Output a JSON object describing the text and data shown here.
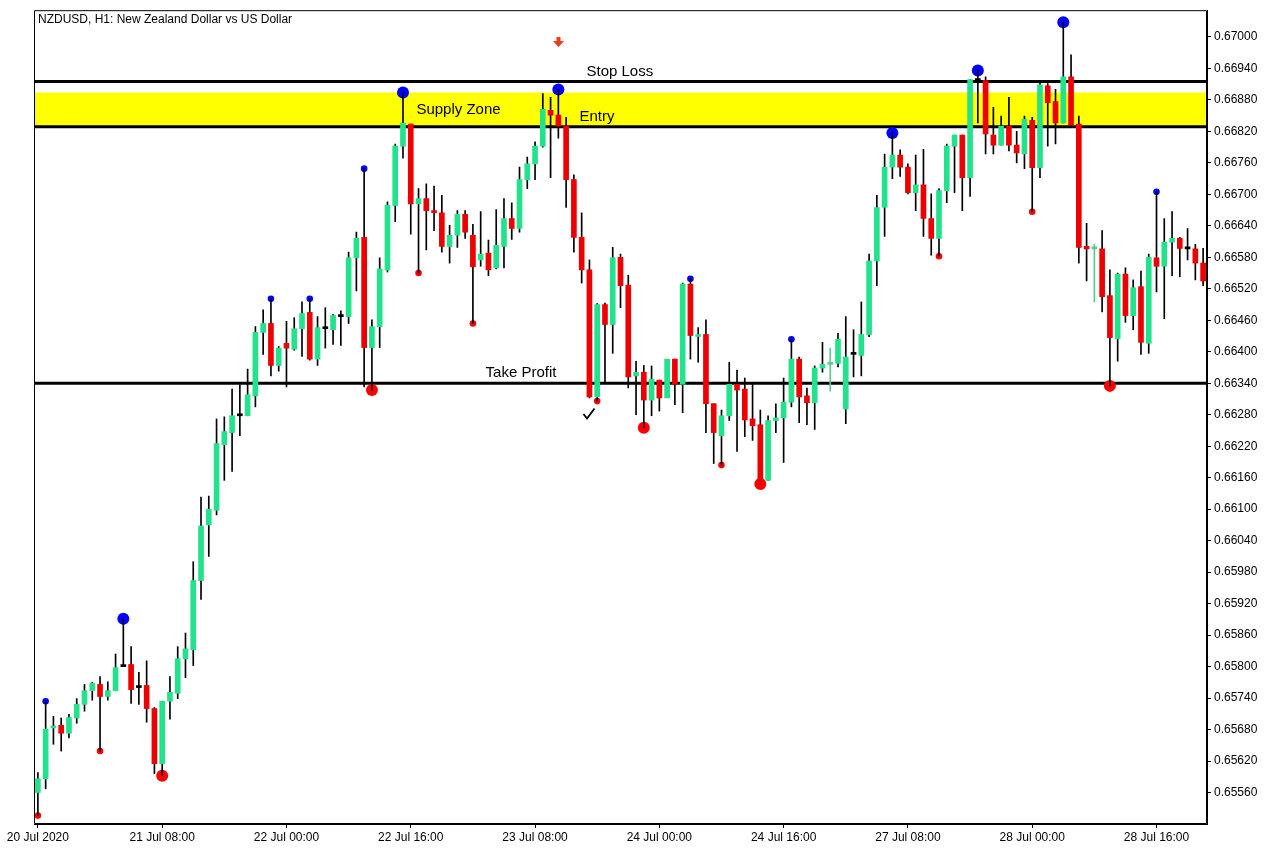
{
  "chart_data": {
    "type": "candlestick",
    "title": "NZDUSD, H1: New Zealand Dollar vs US Dollar",
    "categories": [
      "20 Jul 2020",
      null,
      null,
      null,
      null,
      null,
      null,
      null,
      null,
      null,
      null,
      null,
      null,
      null,
      null,
      null,
      "21 Jul 08:00",
      null,
      null,
      null,
      null,
      null,
      null,
      null,
      null,
      null,
      null,
      null,
      null,
      null,
      null,
      null,
      "22 Jul 00:00",
      null,
      null,
      null,
      null,
      null,
      null,
      null,
      null,
      null,
      null,
      null,
      null,
      null,
      null,
      null,
      "22 Jul 16:00",
      null,
      null,
      null,
      null,
      null,
      null,
      null,
      null,
      null,
      null,
      null,
      null,
      null,
      null,
      null,
      "23 Jul 08:00",
      null,
      null,
      null,
      null,
      null,
      null,
      null,
      null,
      null,
      null,
      null,
      null,
      null,
      null,
      null,
      "24 Jul 00:00",
      null,
      null,
      null,
      null,
      null,
      null,
      null,
      null,
      null,
      null,
      null,
      null,
      null,
      null,
      null,
      "24 Jul 16:00",
      null,
      null,
      null,
      null,
      null,
      null,
      null,
      null,
      null,
      null,
      null,
      null,
      null,
      null,
      null,
      "27 Jul 08:00",
      null,
      null,
      null,
      null,
      null,
      null,
      null,
      null,
      null,
      null,
      null,
      null,
      null,
      null,
      null,
      "28 Jul 00:00",
      null,
      null,
      null,
      null,
      null,
      null,
      null,
      null,
      null,
      null,
      null,
      null,
      null,
      null,
      null,
      "28 Jul 16:00",
      null,
      null,
      null,
      null,
      null,
      null
    ],
    "ohlc": [
      [
        0.6556,
        0.65598,
        0.65516,
        0.65586
      ],
      [
        0.65586,
        0.65734,
        0.65567,
        0.65681
      ],
      [
        0.65683,
        0.65705,
        0.65652,
        0.65686
      ],
      [
        0.65688,
        0.65702,
        0.65639,
        0.65673
      ],
      [
        0.65673,
        0.65709,
        0.65664,
        0.65703
      ],
      [
        0.65702,
        0.65739,
        0.65692,
        0.65728
      ],
      [
        0.65728,
        0.65766,
        0.65715,
        0.65754
      ],
      [
        0.65754,
        0.6577,
        0.65736,
        0.65768
      ],
      [
        0.65766,
        0.65781,
        0.65639,
        0.65743
      ],
      [
        0.65743,
        0.65771,
        0.65736,
        0.65754
      ],
      [
        0.65754,
        0.65824,
        0.65754,
        0.65798
      ],
      [
        0.658,
        0.65891,
        0.658,
        0.658
      ],
      [
        0.65804,
        0.65838,
        0.6573,
        0.65756
      ],
      [
        0.6576,
        0.65789,
        0.65728,
        0.6576
      ],
      [
        0.65764,
        0.65811,
        0.65694,
        0.6572
      ],
      [
        0.6572,
        0.65722,
        0.65596,
        0.65615
      ],
      [
        0.65615,
        0.65734,
        0.65592,
        0.65734
      ],
      [
        0.65734,
        0.65781,
        0.657,
        0.65751
      ],
      [
        0.65749,
        0.65838,
        0.65739,
        0.65815
      ],
      [
        0.65815,
        0.65864,
        0.65779,
        0.65834
      ],
      [
        0.65832,
        0.66,
        0.65802,
        0.65964
      ],
      [
        0.65964,
        0.66123,
        0.65928,
        0.66068
      ],
      [
        0.6607,
        0.66125,
        0.6601,
        0.661
      ],
      [
        0.66098,
        0.66272,
        0.66089,
        0.66225
      ],
      [
        0.66223,
        0.66276,
        0.66155,
        0.66248
      ],
      [
        0.66246,
        0.66329,
        0.66172,
        0.66278
      ],
      [
        0.66278,
        0.66337,
        0.6624,
        0.66278
      ],
      [
        0.66278,
        0.66367,
        0.66278,
        0.66318
      ],
      [
        0.66316,
        0.66448,
        0.66295,
        0.66437
      ],
      [
        0.66437,
        0.6648,
        0.66395,
        0.66454
      ],
      [
        0.66454,
        0.66501,
        0.66354,
        0.66374
      ],
      [
        0.66374,
        0.6641,
        0.66363,
        0.66407
      ],
      [
        0.66416,
        0.66458,
        0.66333,
        0.66407
      ],
      [
        0.66405,
        0.66465,
        0.66403,
        0.66444
      ],
      [
        0.66444,
        0.66495,
        0.66391,
        0.66473
      ],
      [
        0.66475,
        0.66501,
        0.66384,
        0.66386
      ],
      [
        0.66386,
        0.66467,
        0.66374,
        0.66446
      ],
      [
        0.66444,
        0.66484,
        0.66407,
        0.66444
      ],
      [
        0.66442,
        0.66471,
        0.66414,
        0.66469
      ],
      [
        0.66467,
        0.66478,
        0.66412,
        0.66467
      ],
      [
        0.66467,
        0.6659,
        0.66454,
        0.66579
      ],
      [
        0.66579,
        0.66628,
        0.66516,
        0.66616
      ],
      [
        0.66618,
        0.66749,
        0.66333,
        0.66408
      ],
      [
        0.66408,
        0.66461,
        0.66327,
        0.66448
      ],
      [
        0.66448,
        0.66579,
        0.66408,
        0.66558
      ],
      [
        0.66556,
        0.66686,
        0.66552,
        0.66679
      ],
      [
        0.66679,
        0.66796,
        0.66648,
        0.66792
      ],
      [
        0.66792,
        0.66894,
        0.66769,
        0.66836
      ],
      [
        0.66834,
        0.66834,
        0.66624,
        0.66682
      ],
      [
        0.66682,
        0.66711,
        0.6655,
        0.66692
      ],
      [
        0.66692,
        0.6672,
        0.66594,
        0.66669
      ],
      [
        0.66669,
        0.66716,
        0.66631,
        0.66665
      ],
      [
        0.66665,
        0.66698,
        0.6659,
        0.66601
      ],
      [
        0.66601,
        0.66641,
        0.66569,
        0.66622
      ],
      [
        0.66622,
        0.66669,
        0.66599,
        0.66662
      ],
      [
        0.66662,
        0.66669,
        0.66616,
        0.66628
      ],
      [
        0.66622,
        0.66643,
        0.66454,
        0.66562
      ],
      [
        0.66575,
        0.66667,
        0.66563,
        0.66586
      ],
      [
        0.66588,
        0.66613,
        0.66545,
        0.66556
      ],
      [
        0.6656,
        0.66671,
        0.66558,
        0.66603
      ],
      [
        0.66601,
        0.66692,
        0.6656,
        0.66654
      ],
      [
        0.66654,
        0.66684,
        0.66614,
        0.66635
      ],
      [
        0.66635,
        0.66752,
        0.66628,
        0.66728
      ],
      [
        0.66728,
        0.66771,
        0.66711,
        0.66758
      ],
      [
        0.66758,
        0.668,
        0.66728,
        0.66792
      ],
      [
        0.66792,
        0.66892,
        0.6679,
        0.66862
      ],
      [
        0.6686,
        0.66885,
        0.66732,
        0.66851
      ],
      [
        0.66851,
        0.669,
        0.66807,
        0.6683
      ],
      [
        0.6683,
        0.66847,
        0.66675,
        0.66728
      ],
      [
        0.66728,
        0.66737,
        0.6659,
        0.66618
      ],
      [
        0.66618,
        0.66665,
        0.66531,
        0.66556
      ],
      [
        0.66556,
        0.66575,
        0.66312,
        0.66314
      ],
      [
        0.66314,
        0.66492,
        0.66306,
        0.6649
      ],
      [
        0.6649,
        0.66493,
        0.66342,
        0.66452
      ],
      [
        0.66452,
        0.66599,
        0.66397,
        0.66579
      ],
      [
        0.6658,
        0.66586,
        0.66484,
        0.66526
      ],
      [
        0.66527,
        0.66546,
        0.66331,
        0.66352
      ],
      [
        0.66354,
        0.66382,
        0.6628,
        0.66361
      ],
      [
        0.66361,
        0.66374,
        0.66255,
        0.66308
      ],
      [
        0.66308,
        0.66373,
        0.66278,
        0.66348
      ],
      [
        0.66346,
        0.66346,
        0.66287,
        0.66312
      ],
      [
        0.66312,
        0.66386,
        0.66312,
        0.66386
      ],
      [
        0.66386,
        0.66386,
        0.66299,
        0.66338
      ],
      [
        0.66338,
        0.66531,
        0.66284,
        0.66529
      ],
      [
        0.66529,
        0.66539,
        0.66386,
        0.66431
      ],
      [
        0.66429,
        0.66446,
        0.6638,
        0.66433
      ],
      [
        0.66433,
        0.66461,
        0.66246,
        0.66301
      ],
      [
        0.66301,
        0.66301,
        0.66187,
        0.66246
      ],
      [
        0.6624,
        0.66289,
        0.66184,
        0.66278
      ],
      [
        0.66278,
        0.6638,
        0.66269,
        0.66338
      ],
      [
        0.66338,
        0.66365,
        0.6621,
        0.66327
      ],
      [
        0.66329,
        0.6635,
        0.66238,
        0.6627
      ],
      [
        0.66272,
        0.66338,
        0.66231,
        0.66259
      ],
      [
        0.66261,
        0.66289,
        0.66148,
        0.66149
      ],
      [
        0.66155,
        0.66278,
        0.66155,
        0.66269
      ],
      [
        0.66269,
        0.66301,
        0.66246,
        0.66274
      ],
      [
        0.66274,
        0.6635,
        0.66189,
        0.66304
      ],
      [
        0.66304,
        0.66424,
        0.66295,
        0.66386
      ],
      [
        0.66386,
        0.6639,
        0.66265,
        0.66314
      ],
      [
        0.66316,
        0.66331,
        0.66261,
        0.66303
      ],
      [
        0.66303,
        0.66373,
        0.66252,
        0.66369
      ],
      [
        0.66369,
        0.66418,
        0.66361,
        0.66376
      ],
      [
        0.66376,
        0.66407,
        0.66325,
        0.66376
      ],
      [
        0.66378,
        0.66435,
        0.66371,
        0.66424
      ],
      [
        0.66291,
        0.66467,
        0.66263,
        0.6639
      ],
      [
        0.66395,
        0.66442,
        0.66352,
        0.66395
      ],
      [
        0.66393,
        0.66495,
        0.66354,
        0.66433
      ],
      [
        0.66433,
        0.66586,
        0.66429,
        0.66573
      ],
      [
        0.66573,
        0.66698,
        0.66526,
        0.66675
      ],
      [
        0.66675,
        0.66777,
        0.6662,
        0.66752
      ],
      [
        0.66752,
        0.66817,
        0.6673,
        0.66775
      ],
      [
        0.66775,
        0.66785,
        0.66734,
        0.66752
      ],
      [
        0.66752,
        0.66758,
        0.66701,
        0.66703
      ],
      [
        0.66703,
        0.66775,
        0.66669,
        0.66718
      ],
      [
        0.66718,
        0.66786,
        0.6662,
        0.66654
      ],
      [
        0.66654,
        0.66701,
        0.66584,
        0.66616
      ],
      [
        0.66616,
        0.66711,
        0.66582,
        0.66707
      ],
      [
        0.66707,
        0.66796,
        0.66684,
        0.66792
      ],
      [
        0.66792,
        0.66813,
        0.66703,
        0.66813
      ],
      [
        0.66813,
        0.66813,
        0.66669,
        0.66732
      ],
      [
        0.66732,
        0.66919,
        0.66696,
        0.66919
      ],
      [
        0.66917,
        0.66936,
        0.66836,
        0.66917
      ],
      [
        0.66917,
        0.66924,
        0.66777,
        0.66815
      ],
      [
        0.66813,
        0.66866,
        0.66777,
        0.66794
      ],
      [
        0.66794,
        0.66849,
        0.66794,
        0.6683
      ],
      [
        0.6683,
        0.66885,
        0.66783,
        0.66794
      ],
      [
        0.66794,
        0.6682,
        0.6676,
        0.66779
      ],
      [
        0.66777,
        0.66849,
        0.66749,
        0.66843
      ],
      [
        0.66841,
        0.66847,
        0.66667,
        0.66751
      ],
      [
        0.66751,
        0.66915,
        0.66732,
        0.66909
      ],
      [
        0.66907,
        0.66911,
        0.66792,
        0.66875
      ],
      [
        0.66877,
        0.669,
        0.66796,
        0.66836
      ],
      [
        0.66836,
        0.67028,
        0.66836,
        0.66924
      ],
      [
        0.66924,
        0.66966,
        0.66828,
        0.66832
      ],
      [
        0.66834,
        0.66849,
        0.66569,
        0.66599
      ],
      [
        0.66601,
        0.66645,
        0.66535,
        0.66596
      ],
      [
        0.66596,
        0.66605,
        0.66495,
        0.66596
      ],
      [
        0.66596,
        0.66631,
        0.66476,
        0.66505
      ],
      [
        0.66507,
        0.66556,
        0.66335,
        0.66427
      ],
      [
        0.66425,
        0.6655,
        0.66382,
        0.66548
      ],
      [
        0.66548,
        0.6656,
        0.66456,
        0.66469
      ],
      [
        0.66469,
        0.66537,
        0.66442,
        0.66522
      ],
      [
        0.66524,
        0.66554,
        0.66395,
        0.66418
      ],
      [
        0.66416,
        0.66586,
        0.66397,
        0.6658
      ],
      [
        0.66579,
        0.66705,
        0.66514,
        0.66563
      ],
      [
        0.66563,
        0.66654,
        0.66463,
        0.66609
      ],
      [
        0.66609,
        0.66667,
        0.66545,
        0.66616
      ],
      [
        0.66616,
        0.66618,
        0.66543,
        0.66597
      ],
      [
        0.66596,
        0.66635,
        0.66575,
        0.66596
      ],
      [
        0.66596,
        0.66605,
        0.66537,
        0.66569
      ],
      [
        0.66569,
        0.66597,
        0.66526,
        0.66535
      ]
    ],
    "colors": [
      "#22e28c",
      "#22e28c",
      "#22e28c",
      "#ee0000",
      "#22e28c",
      "#22e28c",
      "#22e28c",
      "#22e28c",
      "#ee0000",
      "#22e28c",
      "#22e28c",
      "#000000",
      "#ee0000",
      "#000000",
      "#ee0000",
      "#ee0000",
      "#22e28c",
      "#22e28c",
      "#22e28c",
      "#22e28c",
      "#22e28c",
      "#22e28c",
      "#22e28c",
      "#22e28c",
      "#22e28c",
      "#22e28c",
      "#000000",
      "#22e28c",
      "#22e28c",
      "#22e28c",
      "#ee0000",
      "#22e28c",
      "#ee0000",
      "#22e28c",
      "#22e28c",
      "#ee0000",
      "#22e28c",
      "#000000",
      "#22e28c",
      "#000000",
      "#22e28c",
      "#22e28c",
      "#ee0000",
      "#22e28c",
      "#22e28c",
      "#22e28c",
      "#22e28c",
      "#22e28c",
      "#ee0000",
      "#22e28c",
      "#ee0000",
      "#ee0000",
      "#ee0000",
      "#22e28c",
      "#22e28c",
      "#ee0000",
      "#ee0000",
      "#22e28c",
      "#ee0000",
      "#22e28c",
      "#22e28c",
      "#ee0000",
      "#22e28c",
      "#22e28c",
      "#22e28c",
      "#22e28c",
      "#ee0000",
      "#ee0000",
      "#ee0000",
      "#ee0000",
      "#ee0000",
      "#ee0000",
      "#22e28c",
      "#ee0000",
      "#22e28c",
      "#ee0000",
      "#ee0000",
      "#22e28c",
      "#ee0000",
      "#22e28c",
      "#ee0000",
      "#22e28c",
      "#ee0000",
      "#22e28c",
      "#ee0000",
      "#22e28c",
      "#ee0000",
      "#ee0000",
      "#22e28c",
      "#22e28c",
      "#ee0000",
      "#ee0000",
      "#ee0000",
      "#ee0000",
      "#22e28c",
      "#22e28c",
      "#22e28c",
      "#22e28c",
      "#ee0000",
      "#ee0000",
      "#22e28c",
      "#22e28c",
      "#5cc98e",
      "#22e28c",
      "#22e28c",
      "#000000",
      "#22e28c",
      "#22e28c",
      "#22e28c",
      "#22e28c",
      "#22e28c",
      "#ee0000",
      "#ee0000",
      "#22e28c",
      "#ee0000",
      "#ee0000",
      "#22e28c",
      "#22e28c",
      "#22e28c",
      "#ee0000",
      "#22e28c",
      "#000000",
      "#ee0000",
      "#ee0000",
      "#22e28c",
      "#ee0000",
      "#ee0000",
      "#22e28c",
      "#ee0000",
      "#22e28c",
      "#ee0000",
      "#ee0000",
      "#22e28c",
      "#ee0000",
      "#ee0000",
      "#ee0000",
      "#5cc98e",
      "#ee0000",
      "#ee0000",
      "#22e28c",
      "#ee0000",
      "#22e28c",
      "#ee0000",
      "#22e28c",
      "#ee0000",
      "#22e28c",
      "#22e28c",
      "#ee0000",
      "#000000",
      "#ee0000",
      "#ee0000"
    ],
    "series": [
      {
        "type": "bubble",
        "color": "#0000ff",
        "values": [
          null,
          0.65734,
          null,
          null,
          null,
          null,
          null,
          null,
          null,
          null,
          null,
          0.65891,
          null,
          null,
          null,
          null,
          null,
          null,
          null,
          null,
          null,
          null,
          null,
          null,
          null,
          null,
          null,
          null,
          null,
          null,
          0.66501,
          null,
          null,
          null,
          null,
          0.66501,
          null,
          null,
          null,
          null,
          null,
          null,
          0.66749,
          null,
          null,
          null,
          null,
          0.66894,
          null,
          null,
          null,
          null,
          null,
          null,
          null,
          null,
          null,
          null,
          null,
          null,
          null,
          null,
          null,
          null,
          null,
          null,
          null,
          0.669,
          null,
          null,
          null,
          null,
          null,
          null,
          null,
          null,
          null,
          null,
          null,
          null,
          null,
          null,
          null,
          null,
          0.66539,
          null,
          null,
          null,
          null,
          null,
          null,
          null,
          null,
          null,
          null,
          null,
          null,
          0.66424,
          null,
          null,
          null,
          null,
          null,
          null,
          null,
          null,
          null,
          null,
          null,
          null,
          0.66817,
          null,
          null,
          null,
          null,
          null,
          null,
          null,
          null,
          null,
          null,
          0.66936,
          null,
          null,
          null,
          null,
          null,
          null,
          null,
          null,
          null,
          null,
          0.67028,
          null,
          null,
          null,
          null,
          null,
          null,
          null,
          null,
          null,
          null,
          null,
          0.66705,
          null,
          null,
          null,
          null,
          null,
          null
        ],
        "sizes": [
          null,
          0.3,
          null,
          null,
          null,
          null,
          null,
          null,
          null,
          null,
          null,
          1,
          null,
          null,
          null,
          null,
          null,
          null,
          null,
          null,
          null,
          null,
          null,
          null,
          null,
          null,
          null,
          null,
          null,
          null,
          0.3,
          null,
          null,
          null,
          null,
          0.3,
          null,
          null,
          null,
          null,
          null,
          null,
          0.3,
          null,
          null,
          null,
          null,
          1,
          null,
          null,
          null,
          null,
          null,
          null,
          null,
          null,
          null,
          null,
          null,
          null,
          null,
          null,
          null,
          null,
          null,
          null,
          null,
          1,
          null,
          null,
          null,
          null,
          null,
          null,
          null,
          null,
          null,
          null,
          null,
          null,
          null,
          null,
          null,
          null,
          0.3,
          null,
          null,
          null,
          null,
          null,
          null,
          null,
          null,
          null,
          null,
          null,
          null,
          0.3,
          null,
          null,
          null,
          null,
          null,
          null,
          null,
          null,
          null,
          null,
          null,
          null,
          1,
          null,
          null,
          null,
          null,
          null,
          null,
          null,
          null,
          null,
          null,
          1,
          null,
          null,
          null,
          null,
          null,
          null,
          null,
          null,
          null,
          null,
          1,
          null,
          null,
          null,
          null,
          null,
          null,
          null,
          null,
          null,
          null,
          null,
          0.3,
          null,
          null,
          null,
          null,
          null,
          null
        ]
      },
      {
        "type": "bubble",
        "color": "#ff0000",
        "values": [
          0.65516,
          null,
          null,
          null,
          null,
          null,
          null,
          null,
          0.65639,
          null,
          null,
          null,
          null,
          null,
          null,
          null,
          0.65592,
          null,
          null,
          null,
          null,
          null,
          null,
          null,
          null,
          null,
          null,
          null,
          null,
          null,
          null,
          null,
          null,
          null,
          null,
          null,
          null,
          null,
          null,
          null,
          null,
          null,
          null,
          0.66327,
          null,
          null,
          null,
          null,
          null,
          0.6655,
          null,
          null,
          null,
          null,
          null,
          null,
          0.66454,
          null,
          null,
          null,
          null,
          null,
          null,
          null,
          null,
          null,
          null,
          null,
          null,
          null,
          null,
          null,
          0.66306,
          null,
          null,
          null,
          null,
          null,
          0.66255,
          null,
          null,
          null,
          null,
          null,
          null,
          null,
          null,
          null,
          0.66184,
          null,
          null,
          null,
          null,
          0.66148,
          null,
          null,
          null,
          null,
          null,
          null,
          null,
          null,
          null,
          null,
          null,
          null,
          null,
          null,
          null,
          null,
          null,
          null,
          null,
          null,
          null,
          null,
          0.66582,
          null,
          null,
          null,
          null,
          null,
          null,
          null,
          null,
          null,
          null,
          null,
          0.66667,
          null,
          null,
          null,
          null,
          null,
          null,
          null,
          null,
          null,
          0.66335,
          null,
          null,
          null,
          null,
          null,
          null,
          null,
          null,
          null,
          null,
          null,
          null
        ],
        "sizes": [
          0.3,
          null,
          null,
          null,
          null,
          null,
          null,
          null,
          0.3,
          null,
          null,
          null,
          null,
          null,
          null,
          null,
          1,
          null,
          null,
          null,
          null,
          null,
          null,
          null,
          null,
          null,
          null,
          null,
          null,
          null,
          null,
          null,
          null,
          null,
          null,
          null,
          null,
          null,
          null,
          null,
          null,
          null,
          null,
          1,
          null,
          null,
          null,
          null,
          null,
          0.3,
          null,
          null,
          null,
          null,
          null,
          null,
          0.3,
          null,
          null,
          null,
          null,
          null,
          null,
          null,
          null,
          null,
          null,
          null,
          null,
          null,
          null,
          null,
          0.3,
          null,
          null,
          null,
          null,
          null,
          1,
          null,
          null,
          null,
          null,
          null,
          null,
          null,
          null,
          null,
          0.3,
          null,
          null,
          null,
          null,
          1,
          null,
          null,
          null,
          null,
          null,
          null,
          null,
          null,
          null,
          null,
          null,
          null,
          null,
          null,
          null,
          null,
          null,
          null,
          null,
          null,
          null,
          null,
          0.3,
          null,
          null,
          null,
          null,
          null,
          null,
          null,
          null,
          null,
          null,
          null,
          0.3,
          null,
          null,
          null,
          null,
          null,
          null,
          null,
          null,
          null,
          1,
          null,
          null,
          null,
          null,
          null,
          null,
          null,
          null,
          null,
          null,
          null,
          null
        ]
      }
    ],
    "ylim": [
      0.655,
      0.67051
    ],
    "yticks": [
      {
        "value": 0.6556,
        "label": "0.65560"
      },
      {
        "value": 0.6562,
        "label": "0.65620"
      },
      {
        "value": 0.6568,
        "label": "0.65680"
      },
      {
        "value": 0.6574,
        "label": "0.65740"
      },
      {
        "value": 0.658,
        "label": "0.65800"
      },
      {
        "value": 0.6586,
        "label": "0.65860"
      },
      {
        "value": 0.6592,
        "label": "0.65920"
      },
      {
        "value": 0.6598,
        "label": "0.65980"
      },
      {
        "value": 0.6604,
        "label": "0.66040"
      },
      {
        "value": 0.661,
        "label": "0.66100"
      },
      {
        "value": 0.6616,
        "label": "0.66160"
      },
      {
        "value": 0.6622,
        "label": "0.66220"
      },
      {
        "value": 0.6628,
        "label": "0.66280"
      },
      {
        "value": 0.6634,
        "label": "0.66340"
      },
      {
        "value": 0.664,
        "label": "0.66400"
      },
      {
        "value": 0.6646,
        "label": "0.66460"
      },
      {
        "value": 0.6652,
        "label": "0.66520"
      },
      {
        "value": 0.6658,
        "label": "0.66580"
      },
      {
        "value": 0.6664,
        "label": "0.66640"
      },
      {
        "value": 0.667,
        "label": "0.66700"
      },
      {
        "value": 0.6676,
        "label": "0.66760"
      },
      {
        "value": 0.6682,
        "label": "0.66820"
      },
      {
        "value": 0.6688,
        "label": "0.66880"
      },
      {
        "value": 0.6694,
        "label": "0.66940"
      },
      {
        "value": 0.67,
        "label": "0.67000"
      }
    ],
    "ref_lines": [
      {
        "axis": "y",
        "value": 0.66915,
        "label": "Stop Loss",
        "color": "#000000"
      },
      {
        "axis": "y",
        "value": 0.66829,
        "label": "Entry",
        "color": "#000000"
      },
      {
        "axis": "y",
        "value": 0.6634,
        "label": "Take Profit",
        "color": "#000000"
      }
    ],
    "bands": [
      {
        "axis": "y",
        "from": 0.6683,
        "to": 0.66894,
        "label": "Supply Zone",
        "color": "#ffff00"
      }
    ]
  }
}
